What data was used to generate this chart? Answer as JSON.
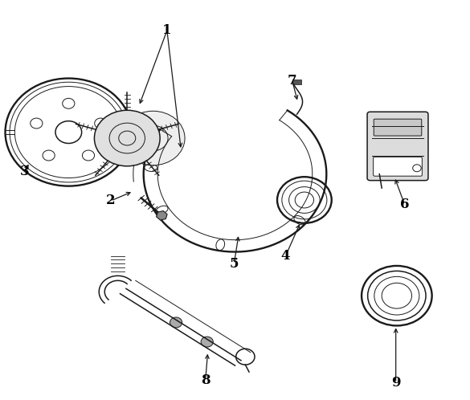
{
  "bg_color": "#ffffff",
  "line_color": "#1a1a1a",
  "label_color": "#000000",
  "fig_width": 5.85,
  "fig_height": 4.98,
  "dpi": 100
}
